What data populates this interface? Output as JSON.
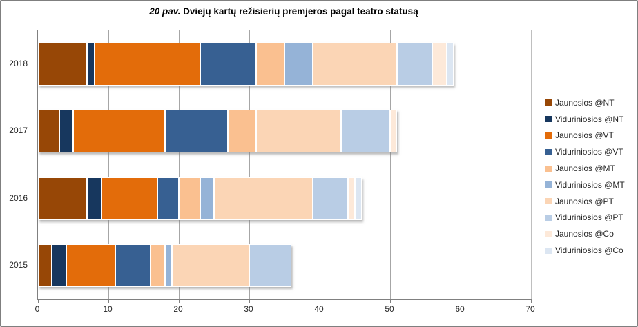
{
  "figure": {
    "title_prefix": "20 pav.",
    "title_rest": " Dviejų kartų režisierių premjeros pagal teatro statusą"
  },
  "chart_data": {
    "type": "bar",
    "orientation": "horizontal",
    "stacked": true,
    "title": "20 pav. Dviejų kartų režisierių premjeros pagal teatro statusą",
    "categories": [
      "2018",
      "2017",
      "2016",
      "2015"
    ],
    "series": [
      {
        "name": "Jaunosios @NT",
        "color": "#974706",
        "values": [
          7,
          3,
          7,
          2
        ]
      },
      {
        "name": "Viduriniosios @NT",
        "color": "#17375E",
        "values": [
          1,
          2,
          2,
          2
        ]
      },
      {
        "name": "Jaunosios @VT",
        "color": "#E36C0A",
        "values": [
          15,
          13,
          8,
          7
        ]
      },
      {
        "name": "Viduriniosios @VT",
        "color": "#376092",
        "values": [
          8,
          9,
          3,
          5
        ]
      },
      {
        "name": "Jaunosios @MT",
        "color": "#FAC090",
        "values": [
          4,
          4,
          3,
          2
        ]
      },
      {
        "name": "Viduriniosios @MT",
        "color": "#95B3D7",
        "values": [
          4,
          0,
          2,
          1
        ]
      },
      {
        "name": "Jaunosios @PT",
        "color": "#FBD5B5",
        "values": [
          12,
          12,
          14,
          11
        ]
      },
      {
        "name": "Viduriniosios @PT",
        "color": "#B9CDE5",
        "values": [
          5,
          7,
          5,
          6
        ]
      },
      {
        "name": "Jaunosios @Co",
        "color": "#FDE9D9",
        "values": [
          2,
          1,
          1,
          0
        ]
      },
      {
        "name": "Viduriniosios @Co",
        "color": "#DCE6F2",
        "values": [
          1,
          0,
          1,
          0
        ]
      }
    ],
    "totals": [
      59,
      51,
      46,
      36
    ],
    "x_ticks": [
      0,
      10,
      20,
      30,
      40,
      50,
      60,
      70
    ],
    "xlim": [
      0,
      70
    ],
    "grid": true,
    "legend_position": "right",
    "gridline_color": "#A6A6A6",
    "axis_text_color": "#262626"
  }
}
